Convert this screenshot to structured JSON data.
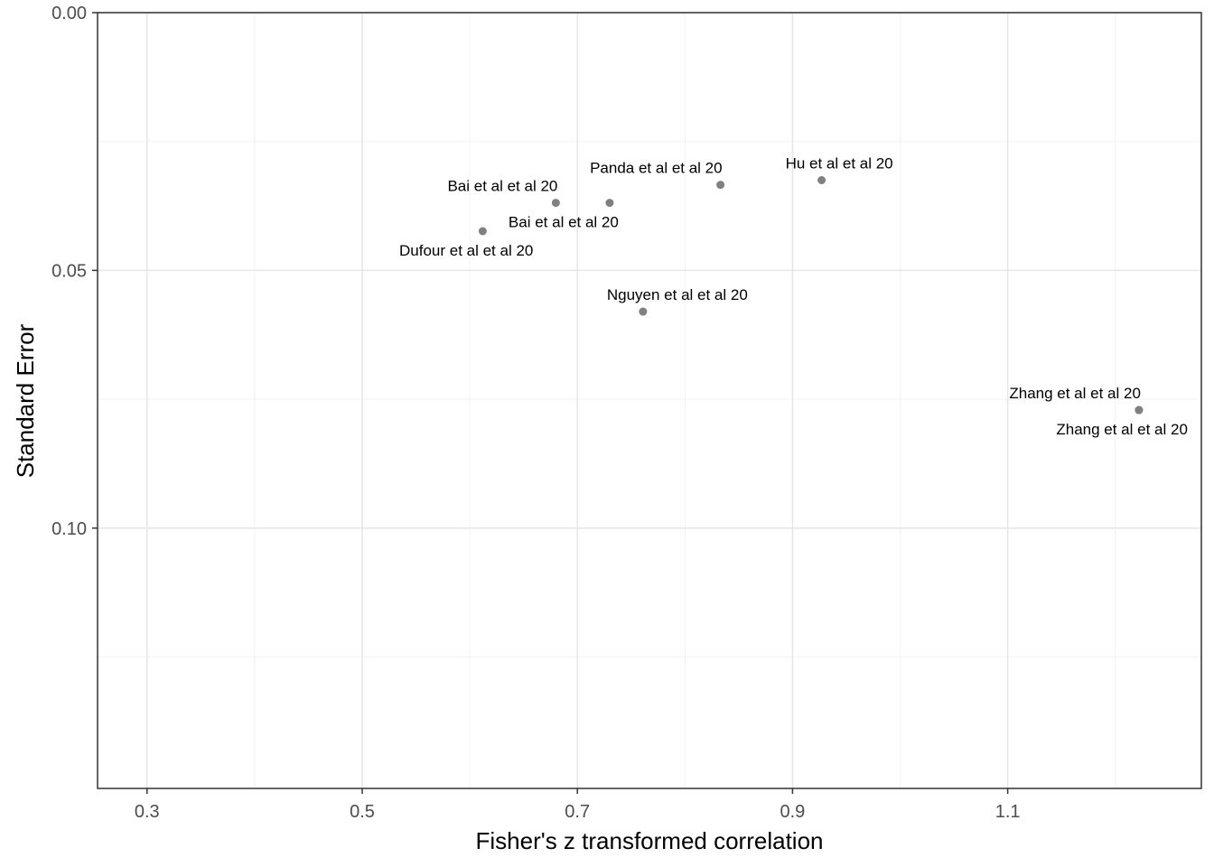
{
  "chart_data": {
    "type": "scatter",
    "title": "",
    "xlabel": "Fisher's z transformed correlation",
    "ylabel": "Standard Error",
    "xlim": [
      0.254,
      1.28
    ],
    "ylim": [
      0.0,
      0.1505
    ],
    "y_reversed": true,
    "x_ticks": [
      {
        "value": 0.3,
        "label": "0.3"
      },
      {
        "value": 0.5,
        "label": "0.5"
      },
      {
        "value": 0.7,
        "label": "0.7"
      },
      {
        "value": 0.9,
        "label": "0.9"
      },
      {
        "value": 1.1,
        "label": "1.1"
      }
    ],
    "x_minor_ticks": [
      0.4,
      0.6,
      0.8,
      1.0,
      1.2
    ],
    "y_ticks": [
      {
        "value": 0.0,
        "label": "0.00"
      },
      {
        "value": 0.05,
        "label": "0.05"
      },
      {
        "value": 0.1,
        "label": "0.10"
      }
    ],
    "y_minor_ticks": [
      0.025,
      0.075,
      0.125
    ],
    "grid": true,
    "point_color": "#808080",
    "points": [
      {
        "x": 0.612,
        "y": 0.0424,
        "label": "Dufour et al  et al 20",
        "label_pos": "below-left"
      },
      {
        "x": 0.68,
        "y": 0.0369,
        "label": "Bai et al  et al 20",
        "label_pos": "above-left"
      },
      {
        "x": 0.73,
        "y": 0.0369,
        "label": "Bai et al  et al 20",
        "label_pos": "below-right"
      },
      {
        "x": 0.833,
        "y": 0.0334,
        "label": "Panda et al  et al 20",
        "label_pos": "above-left"
      },
      {
        "x": 0.927,
        "y": 0.0325,
        "label": "Hu et al  et al 20",
        "label_pos": "above-right"
      },
      {
        "x": 0.761,
        "y": 0.058,
        "label": "Nguyen et al  et al 20",
        "label_pos": "above-right"
      },
      {
        "x": 1.222,
        "y": 0.0771,
        "label": "Zhang et al  et al 20",
        "label_pos": "above-left"
      },
      {
        "x": 1.222,
        "y": 0.0771,
        "label": "Zhang et al  et al 20",
        "label_pos": "below-right"
      }
    ]
  }
}
